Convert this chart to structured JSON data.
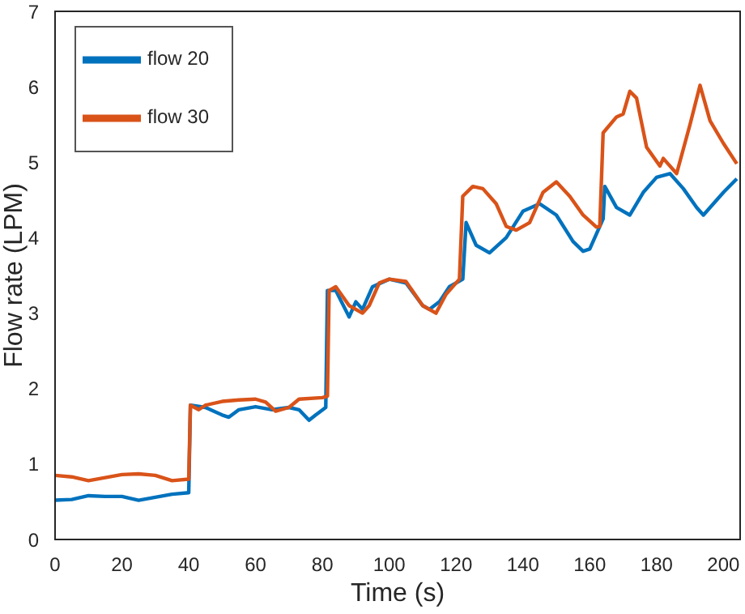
{
  "chart_data": {
    "type": "line",
    "xlabel": "Time (s)",
    "ylabel": "Flow rate (LPM)",
    "xlim": [
      0,
      205
    ],
    "ylim": [
      0,
      7
    ],
    "xticks": [
      0,
      20,
      40,
      60,
      80,
      100,
      120,
      140,
      160,
      180,
      200
    ],
    "yticks": [
      0,
      1,
      2,
      3,
      4,
      5,
      6,
      7
    ],
    "grid": false,
    "legend": "top left",
    "marker": "none",
    "line_style": "solid",
    "series": [
      {
        "name": "flow 20",
        "color": "#0072bd",
        "x": [
          0,
          5,
          10,
          15,
          20,
          25,
          30,
          35,
          40,
          40.5,
          45,
          50,
          52,
          55,
          60,
          65,
          70,
          73,
          76,
          78,
          81,
          81.5,
          84,
          88,
          90,
          92,
          95,
          100,
          105,
          110,
          112,
          115,
          118,
          122,
          123,
          126,
          130,
          135,
          140,
          145,
          150,
          155,
          158,
          160,
          164,
          164.5,
          168,
          172,
          176,
          180,
          184,
          188,
          192,
          194,
          197,
          200,
          204
        ],
        "values": [
          0.52,
          0.53,
          0.58,
          0.57,
          0.57,
          0.52,
          0.56,
          0.6,
          0.62,
          1.78,
          1.75,
          1.65,
          1.62,
          1.72,
          1.76,
          1.72,
          1.75,
          1.72,
          1.58,
          1.65,
          1.75,
          3.3,
          3.3,
          2.95,
          3.15,
          3.05,
          3.35,
          3.45,
          3.4,
          3.1,
          3.05,
          3.15,
          3.35,
          3.45,
          4.2,
          3.9,
          3.8,
          4.0,
          4.35,
          4.45,
          4.3,
          3.95,
          3.82,
          3.85,
          4.25,
          4.68,
          4.4,
          4.3,
          4.6,
          4.8,
          4.85,
          4.65,
          4.4,
          4.3,
          4.45,
          4.6,
          4.78
        ]
      },
      {
        "name": "flow 30",
        "color": "#d95319",
        "x": [
          0,
          5,
          10,
          15,
          20,
          25,
          30,
          35,
          40,
          40.5,
          43,
          45,
          50,
          55,
          60,
          63,
          66,
          70,
          73,
          80,
          81.5,
          82,
          84,
          88,
          92,
          94,
          97,
          100,
          105,
          110,
          114,
          117,
          121,
          122,
          125,
          128,
          132,
          135,
          138,
          142,
          146,
          150,
          154,
          158,
          162,
          163,
          164,
          168,
          170,
          172,
          174,
          177,
          181,
          182,
          186,
          190,
          193,
          196,
          200,
          204
        ],
        "values": [
          0.85,
          0.83,
          0.78,
          0.82,
          0.86,
          0.87,
          0.85,
          0.78,
          0.8,
          1.78,
          1.72,
          1.78,
          1.83,
          1.85,
          1.86,
          1.82,
          1.7,
          1.75,
          1.86,
          1.88,
          1.9,
          3.3,
          3.35,
          3.1,
          3.0,
          3.1,
          3.4,
          3.45,
          3.42,
          3.1,
          3.0,
          3.25,
          3.45,
          4.55,
          4.68,
          4.65,
          4.45,
          4.15,
          4.1,
          4.2,
          4.6,
          4.74,
          4.55,
          4.3,
          4.14,
          4.15,
          5.39,
          5.6,
          5.64,
          5.94,
          5.85,
          5.2,
          4.95,
          5.05,
          4.85,
          5.5,
          6.02,
          5.55,
          5.25,
          4.98
        ]
      }
    ]
  }
}
